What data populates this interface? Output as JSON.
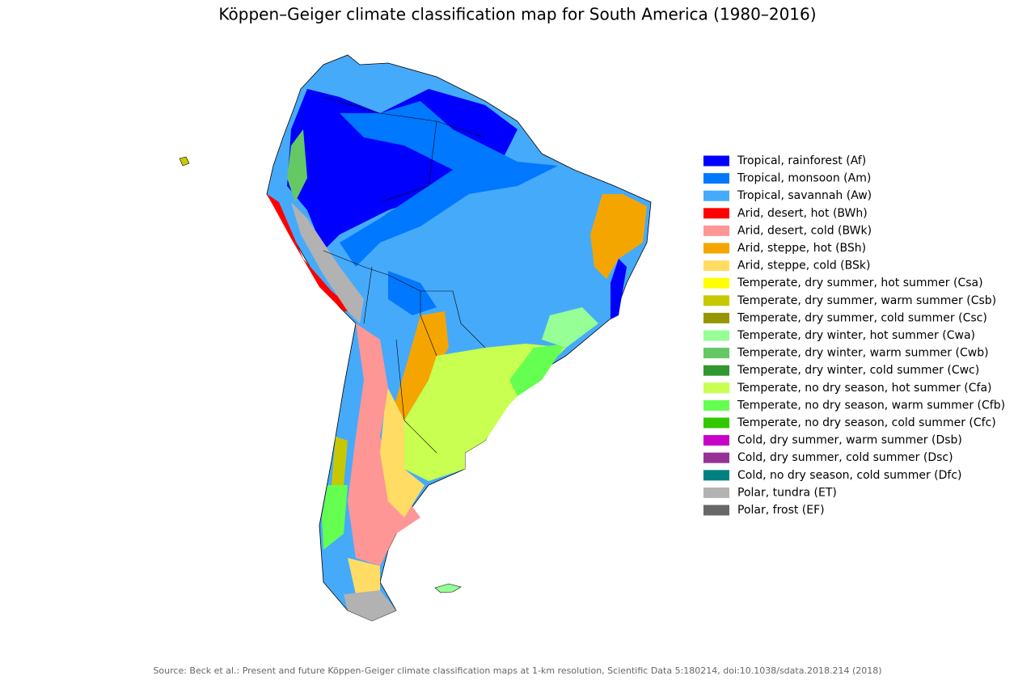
{
  "title": "Köppen–Geiger climate classification map for South America (1980–2016)",
  "legend": [
    {
      "label": "Tropical, rainforest (Af)",
      "color": "#0000ff"
    },
    {
      "label": "Tropical, monsoon (Am)",
      "color": "#0078ff"
    },
    {
      "label": "Tropical, savannah (Aw)",
      "color": "#46aafa"
    },
    {
      "label": "Arid, desert, hot (BWh)",
      "color": "#ff0000"
    },
    {
      "label": "Arid, desert, cold (BWk)",
      "color": "#ff9696"
    },
    {
      "label": "Arid, steppe, hot (BSh)",
      "color": "#f5a500"
    },
    {
      "label": "Arid, steppe, cold (BSk)",
      "color": "#ffdc64"
    },
    {
      "label": "Temperate, dry summer, hot summer (Csa)",
      "color": "#ffff00"
    },
    {
      "label": "Temperate, dry summer, warm summer (Csb)",
      "color": "#c8c800"
    },
    {
      "label": "Temperate, dry summer, cold summer (Csc)",
      "color": "#969600"
    },
    {
      "label": "Temperate, dry winter, hot summer (Cwa)",
      "color": "#96ff96"
    },
    {
      "label": "Temperate, dry winter, warm summer (Cwb)",
      "color": "#64c864"
    },
    {
      "label": "Temperate, dry winter, cold summer (Cwc)",
      "color": "#329632"
    },
    {
      "label": "Temperate, no dry season, hot summer (Cfa)",
      "color": "#c8ff50"
    },
    {
      "label": "Temperate, no dry season, warm summer (Cfb)",
      "color": "#64ff50"
    },
    {
      "label": "Temperate, no dry season, cold summer (Cfc)",
      "color": "#32c800"
    },
    {
      "label": "Cold, dry summer, warm summer (Dsb)",
      "color": "#c800c8"
    },
    {
      "label": "Cold, dry summer, cold summer (Dsc)",
      "color": "#963296"
    },
    {
      "label": "Cold, no dry season, cold summer (Dfc)",
      "color": "#008080"
    },
    {
      "label": "Polar, tundra (ET)",
      "color": "#b2b2b2"
    },
    {
      "label": "Polar, frost (EF)",
      "color": "#686868"
    }
  ],
  "source": "Source: Beck et al.: Present and future Köppen-Geiger climate classification maps at 1-km resolution, Scientific Data 5:180214, doi:10.1038/sdata.2018.214 (2018)"
}
